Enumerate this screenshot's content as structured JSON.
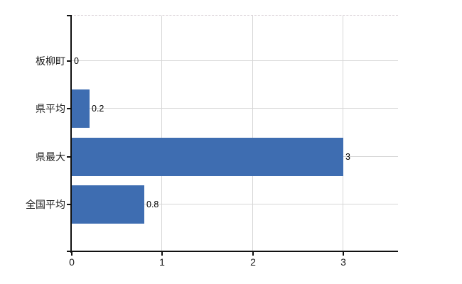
{
  "chart_data": {
    "type": "bar",
    "orientation": "horizontal",
    "title": "",
    "xlabel": "",
    "ylabel": "",
    "categories": [
      "板柳町",
      "県平均",
      "県最大",
      "全国平均"
    ],
    "values": [
      0,
      0.2,
      3,
      0.8
    ],
    "value_labels": [
      "0",
      "0.2",
      "3",
      "0.8"
    ],
    "x_ticks": [
      0,
      1,
      2,
      3
    ],
    "x_tick_labels": [
      "0",
      "1",
      "2",
      "3"
    ],
    "xlim": [
      0,
      3.6
    ],
    "grid": true,
    "legend": false,
    "colors": {
      "bar": "#3e6db1",
      "grid": "#d6d6d6",
      "axis": "#111111",
      "text": "#1c1c1c",
      "background": "#ffffff"
    }
  }
}
